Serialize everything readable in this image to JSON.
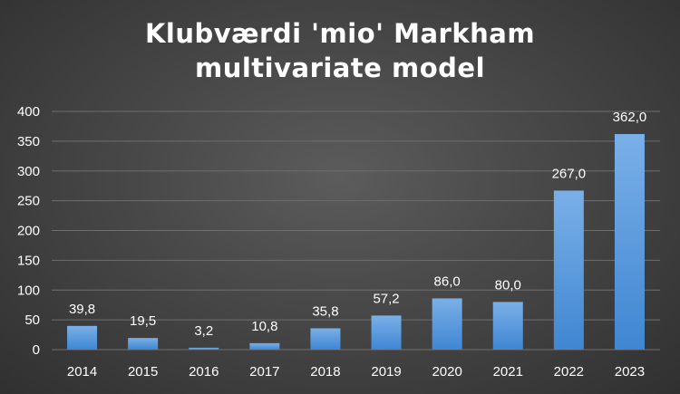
{
  "chart_data": {
    "type": "bar",
    "title_lines": [
      "Klubværdi 'mio' Markham",
      "multivariate model"
    ],
    "categories": [
      "2014",
      "2015",
      "2016",
      "2017",
      "2018",
      "2019",
      "2020",
      "2021",
      "2022",
      "2023"
    ],
    "values": [
      39.8,
      19.5,
      3.2,
      10.8,
      35.8,
      57.2,
      86.0,
      80.0,
      267.0,
      362.0
    ],
    "data_labels": [
      "39,8",
      "19,5",
      "3,2",
      "10,8",
      "35,8",
      "57,2",
      "86,0",
      "80,0",
      "267,0",
      "362,0"
    ],
    "yticks": [
      "0",
      "50",
      "100",
      "150",
      "200",
      "250",
      "300",
      "350",
      "400"
    ],
    "ylim": [
      0,
      400
    ],
    "grid": true,
    "legend": "none",
    "colors": {
      "bar_top": "#7ab0e8",
      "bar_bottom": "#3f86d2",
      "grid": "#6e6e6e",
      "text": "#ffffff"
    }
  }
}
